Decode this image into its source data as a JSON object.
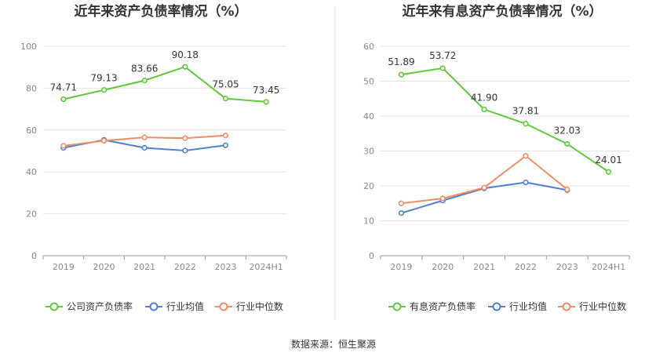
{
  "source": "数据来源：恒生聚源",
  "colors": {
    "main": "#5ec93a",
    "avg": "#4e7fd6",
    "median": "#f28c63",
    "grid": "#e3e3e3",
    "axis": "#999999"
  },
  "chart_data": [
    {
      "type": "line",
      "title": "近年来资产负债率情况（%）",
      "categories": [
        "2019",
        "2020",
        "2021",
        "2022",
        "2023",
        "2024H1"
      ],
      "ylim": [
        0,
        100
      ],
      "yticks": [
        0,
        20,
        40,
        60,
        80,
        100
      ],
      "grid": true,
      "legend_position": "bottom",
      "series": [
        {
          "name": "公司资产负债率",
          "color_key": "main",
          "values": [
            74.71,
            79.13,
            83.66,
            90.18,
            75.05,
            73.45
          ],
          "labels": [
            "74.71",
            "79.13",
            "83.66",
            "90.18",
            "75.05",
            "73.45"
          ]
        },
        {
          "name": "行业均值",
          "color_key": "avg",
          "values": [
            51.5,
            55.3,
            51.5,
            50.2,
            52.7,
            null
          ]
        },
        {
          "name": "行业中位数",
          "color_key": "median",
          "values": [
            52.5,
            54.9,
            56.5,
            56.1,
            57.4,
            null
          ]
        }
      ]
    },
    {
      "type": "line",
      "title": "近年来有息资产负债率情况（%）",
      "categories": [
        "2019",
        "2020",
        "2021",
        "2022",
        "2023",
        "2024H1"
      ],
      "ylim": [
        0,
        60
      ],
      "yticks": [
        0,
        10,
        20,
        30,
        40,
        50,
        60
      ],
      "grid": true,
      "legend_position": "bottom",
      "series": [
        {
          "name": "有息资产负债率",
          "color_key": "main",
          "values": [
            51.89,
            53.72,
            41.9,
            37.81,
            32.03,
            24.01
          ],
          "labels": [
            "51.89",
            "53.72",
            "41.90",
            "37.81",
            "32.03",
            "24.01"
          ]
        },
        {
          "name": "行业均值",
          "color_key": "avg",
          "values": [
            12.2,
            15.8,
            19.3,
            21.0,
            18.8,
            null
          ]
        },
        {
          "name": "行业中位数",
          "color_key": "median",
          "values": [
            15.0,
            16.4,
            19.5,
            28.6,
            19.0,
            null
          ]
        }
      ]
    }
  ]
}
